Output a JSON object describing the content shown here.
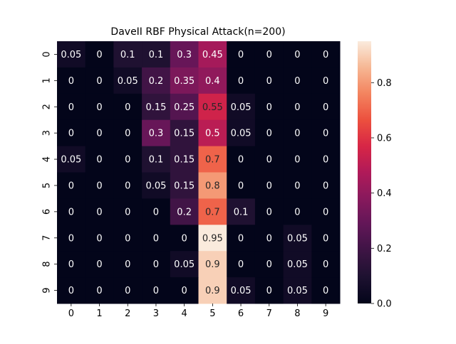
{
  "chart_data": {
    "type": "heatmap",
    "title": "DaveII RBF Physical Attack(n=200)",
    "xlabel": "",
    "ylabel": "",
    "x_categories": [
      "0",
      "1",
      "2",
      "3",
      "4",
      "5",
      "6",
      "7",
      "8",
      "9"
    ],
    "y_categories": [
      "0",
      "1",
      "2",
      "3",
      "4",
      "5",
      "6",
      "7",
      "8",
      "9"
    ],
    "values": [
      [
        0.05,
        0,
        0.1,
        0.1,
        0.3,
        0.45,
        0,
        0,
        0,
        0
      ],
      [
        0,
        0,
        0.05,
        0.2,
        0.35,
        0.4,
        0,
        0,
        0,
        0
      ],
      [
        0,
        0,
        0,
        0.15,
        0.25,
        0.55,
        0.05,
        0,
        0,
        0
      ],
      [
        0,
        0,
        0,
        0.3,
        0.15,
        0.5,
        0.05,
        0,
        0,
        0
      ],
      [
        0.05,
        0,
        0,
        0.1,
        0.15,
        0.7,
        0,
        0,
        0,
        0
      ],
      [
        0,
        0,
        0,
        0.05,
        0.15,
        0.8,
        0,
        0,
        0,
        0
      ],
      [
        0,
        0,
        0,
        0,
        0.2,
        0.7,
        0.1,
        0,
        0,
        0
      ],
      [
        0,
        0,
        0,
        0,
        0,
        0.95,
        0,
        0,
        0.05,
        0
      ],
      [
        0,
        0,
        0,
        0,
        0.05,
        0.9,
        0,
        0,
        0.05,
        0
      ],
      [
        0,
        0,
        0,
        0,
        0,
        0.9,
        0.05,
        0,
        0.05,
        0
      ]
    ],
    "annotations_shown": true,
    "colormap": "rocket",
    "colorbar": {
      "range": [
        0,
        0.95
      ],
      "ticks": [
        0.0,
        0.2,
        0.4,
        0.6,
        0.8
      ],
      "tick_labels": [
        "0.0",
        "0.2",
        "0.4",
        "0.6",
        "0.8"
      ],
      "placement": "right"
    },
    "grid": false
  }
}
